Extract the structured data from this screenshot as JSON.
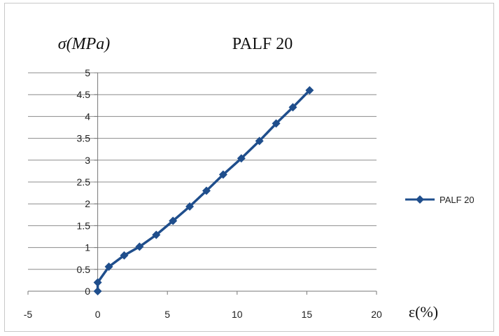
{
  "chart_data": {
    "type": "line",
    "title": "PALF 20",
    "ylabel": "σ(MPa)",
    "xlabel": "ε(%)",
    "xlim": [
      -5,
      20
    ],
    "ylim": [
      0,
      5
    ],
    "x_ticks": [
      "-5",
      "0",
      "5",
      "10",
      "15",
      "20"
    ],
    "y_ticks": [
      "0",
      "0.5",
      "1",
      "1.5",
      "2",
      "2.5",
      "3",
      "3.5",
      "4",
      "4.5",
      "5"
    ],
    "grid": "horizontal",
    "legend_position": "right",
    "series": [
      {
        "name": "PALF 20",
        "color": "#1f4e8c",
        "marker": "diamond",
        "x": [
          0,
          0,
          0.8,
          1.9,
          3.0,
          4.2,
          5.4,
          6.6,
          7.8,
          9.0,
          10.3,
          11.6,
          12.8,
          14.0,
          15.2
        ],
        "y": [
          0,
          0.2,
          0.56,
          0.82,
          1.02,
          1.29,
          1.61,
          1.94,
          2.3,
          2.67,
          3.04,
          3.44,
          3.84,
          4.21,
          4.6
        ]
      }
    ]
  }
}
